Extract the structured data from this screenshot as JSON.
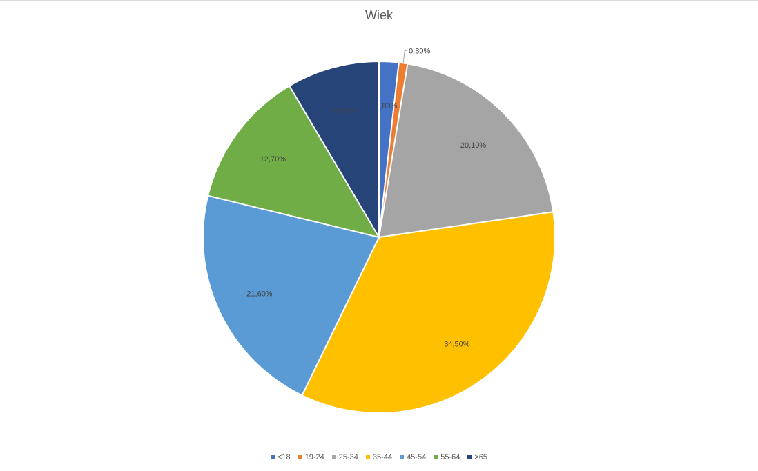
{
  "chart_data": {
    "type": "pie",
    "title": "Wiek",
    "categories": [
      "<18",
      "19-24",
      "25-34",
      "35-44",
      "45-54",
      "55-64",
      ">65"
    ],
    "values": [
      1.8,
      0.8,
      20.1,
      34.5,
      21.6,
      12.7,
      8.5
    ],
    "labels": [
      "1,80%",
      "0,80%",
      "20,10%",
      "34,50%",
      "21,60%",
      "12,70%",
      "8,50%"
    ],
    "colors": [
      "#4472C4",
      "#ED7D31",
      "#A5A5A5",
      "#FFC000",
      "#5B9BD5",
      "#70AD47",
      "#264478"
    ],
    "legend_position": "bottom"
  }
}
